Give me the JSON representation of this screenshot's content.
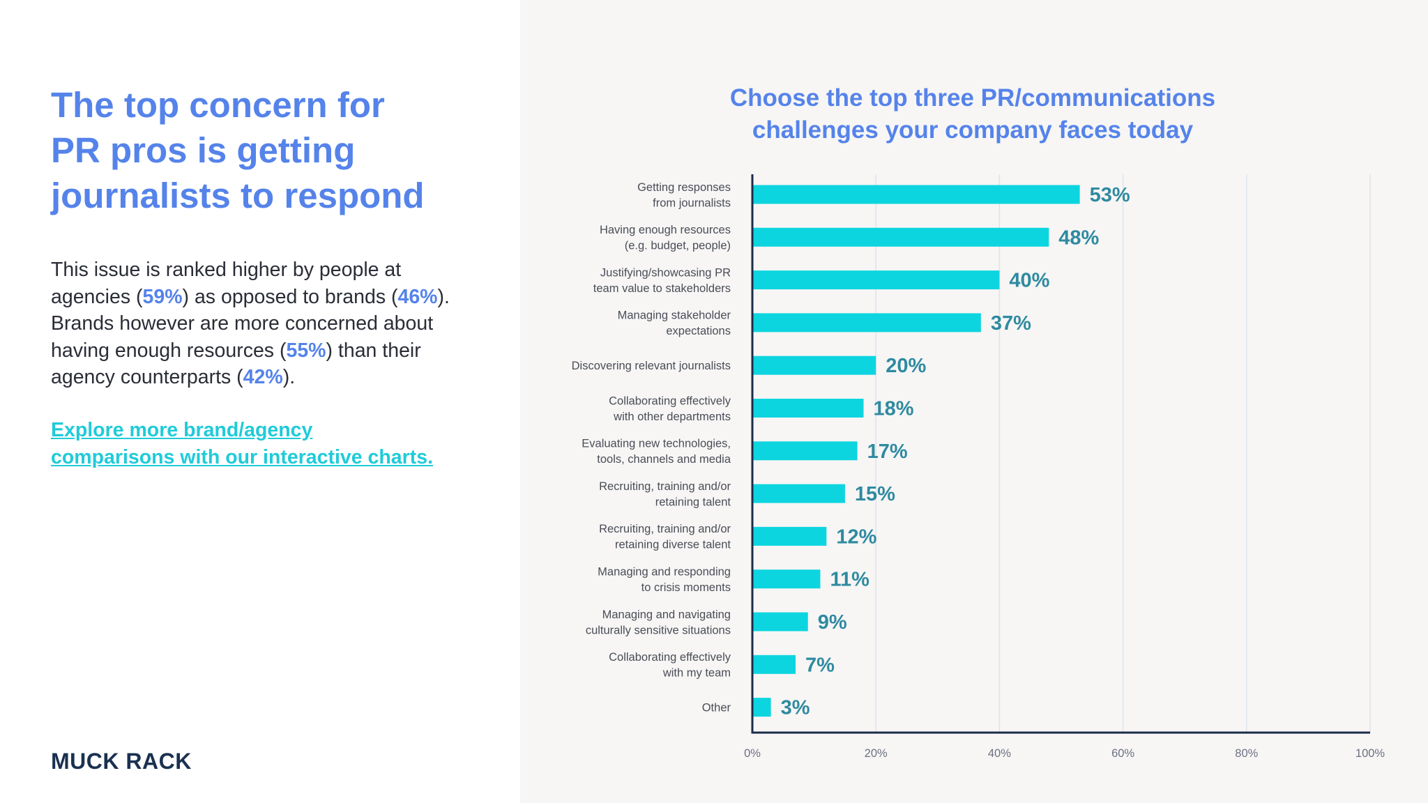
{
  "headline": {
    "lines": [
      "The top concern for",
      "PR pros is getting",
      "journalists to respond"
    ]
  },
  "body": {
    "t1": "This issue is ranked higher by people at agencies (",
    "agency_pct": "59%",
    "t2": ") as opposed to brands (",
    "brand_pct": "46%",
    "t3": "). Brands however are more concerned about having enough resources (",
    "brand_resources_pct": "55%",
    "t4": ") than their agency counterparts (",
    "agency_resources_pct": "42%",
    "t5": ")."
  },
  "cta": {
    "line1": "Explore more brand/agency",
    "line2": "comparisons with our interactive charts."
  },
  "logo": {
    "text": "MUCK RACK"
  },
  "colors": {
    "accent_blue": "#5583ea",
    "bar_cyan": "#0dd5df",
    "value_teal": "#2e8aa0",
    "axis_navy": "#1c2b4a",
    "grid": "#dde3ec"
  },
  "chart_data": {
    "type": "bar",
    "orientation": "horizontal",
    "title_lines": [
      "Choose the top three PR/communications",
      "challenges your company faces today"
    ],
    "categories": [
      [
        "Getting responses",
        "from journalists"
      ],
      [
        "Having enough resources",
        "(e.g. budget, people)"
      ],
      [
        "Justifying/showcasing PR",
        "team value to stakeholders"
      ],
      [
        "Managing stakeholder",
        "expectations"
      ],
      [
        "Discovering relevant journalists"
      ],
      [
        "Collaborating effectively",
        "with other departments"
      ],
      [
        "Evaluating new technologies,",
        "tools, channels and media"
      ],
      [
        "Recruiting, training and/or",
        "retaining talent"
      ],
      [
        "Recruiting, training and/or",
        "retaining diverse talent"
      ],
      [
        "Managing and responding",
        "to crisis moments"
      ],
      [
        "Managing and navigating",
        "culturally sensitive situations"
      ],
      [
        "Collaborating effectively",
        "with my team"
      ],
      [
        "Other"
      ]
    ],
    "values": [
      53,
      48,
      40,
      37,
      20,
      18,
      17,
      15,
      12,
      11,
      9,
      7,
      3
    ],
    "value_labels": [
      "53%",
      "48%",
      "40%",
      "37%",
      "20%",
      "18%",
      "17%",
      "15%",
      "12%",
      "11%",
      "9%",
      "7%",
      "3%"
    ],
    "xlim": [
      0,
      100
    ],
    "xticks": [
      0,
      20,
      40,
      60,
      80,
      100
    ],
    "xtick_labels": [
      "0%",
      "20%",
      "40%",
      "60%",
      "80%",
      "100%"
    ],
    "grid": true
  }
}
